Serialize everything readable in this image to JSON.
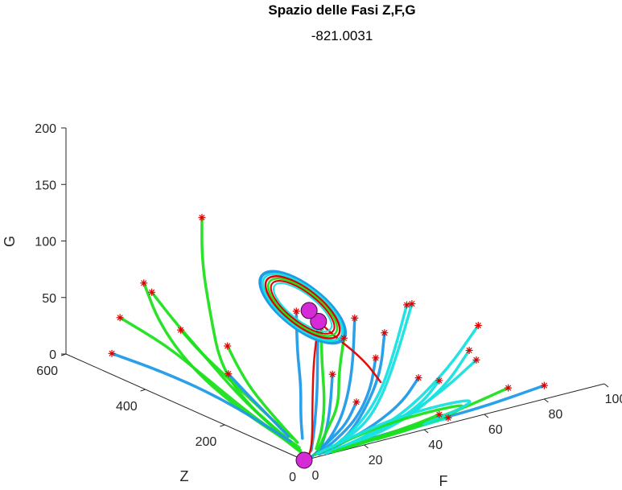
{
  "chart_data": {
    "type": "line",
    "projection": "3d",
    "title": "Spazio delle Fasi Z,F,G",
    "subtitle": "-821.0031",
    "xlabel": "F",
    "ylabel": "Z",
    "zlabel": "G",
    "xlim": [
      0,
      100
    ],
    "ylim": [
      0,
      600
    ],
    "zlim": [
      0,
      200
    ],
    "x_ticks": [
      "0",
      "20",
      "40",
      "60",
      "80",
      "100"
    ],
    "y_ticks": [
      "0",
      "200",
      "400",
      "600"
    ],
    "z_ticks": [
      "0",
      "50",
      "100",
      "150",
      "200"
    ],
    "grid": false,
    "colors": {
      "green": "#1ee01e",
      "blue": "#1e9be6",
      "cyan": "#18e0e0",
      "red": "#e00000",
      "start_marker": "#e00000",
      "equilibrium": "#d62ad6"
    },
    "equilibria": [
      {
        "F": 0,
        "Z": 0,
        "G": 0
      },
      {
        "F": 18,
        "Z": 100,
        "G": 95
      },
      {
        "F": 40,
        "Z": 290,
        "G": 60
      }
    ],
    "start_points": [
      {
        "F": 40,
        "Z": 560,
        "G": 100
      },
      {
        "F": 18,
        "Z": 540,
        "G": 60
      },
      {
        "F": 18,
        "Z": 520,
        "G": 55
      },
      {
        "F": 18,
        "Z": 600,
        "G": 20
      },
      {
        "F": 25,
        "Z": 500,
        "G": 20
      },
      {
        "F": 30,
        "Z": 420,
        "G": 15
      },
      {
        "F": 10,
        "Z": 560,
        "G": 0
      },
      {
        "F": 25,
        "Z": 380,
        "G": 0
      },
      {
        "F": 45,
        "Z": 360,
        "G": 45
      },
      {
        "F": 20,
        "Z": 80,
        "G": 50
      },
      {
        "F": 28,
        "Z": 80,
        "G": 20
      },
      {
        "F": 38,
        "Z": 160,
        "G": 75
      },
      {
        "F": 40,
        "Z": 100,
        "G": 70
      },
      {
        "F": 45,
        "Z": 160,
        "G": 35
      },
      {
        "F": 50,
        "Z": 90,
        "G": 25
      },
      {
        "F": 45,
        "Z": 0,
        "G": 40
      },
      {
        "F": 55,
        "Z": 0,
        "G": 60
      },
      {
        "F": 58,
        "Z": 0,
        "G": 80
      },
      {
        "F": 60,
        "Z": 20,
        "G": 45
      },
      {
        "F": 58,
        "Z": 180,
        "G": 70
      },
      {
        "F": 65,
        "Z": 220,
        "G": 60
      },
      {
        "F": 80,
        "Z": 0,
        "G": 12
      },
      {
        "F": 48,
        "Z": 0,
        "G": 5
      },
      {
        "F": 45,
        "Z": 0,
        "G": 10
      },
      {
        "F": 68,
        "Z": 0,
        "G": 18
      },
      {
        "F": 40,
        "Z": 260,
        "G": 50
      },
      {
        "F": 45,
        "Z": 240,
        "G": 40
      }
    ],
    "series": [
      {
        "color": "green",
        "points": [
          [
            40,
            560,
            100
          ],
          [
            40,
            560,
            60
          ],
          [
            35,
            500,
            25
          ],
          [
            25,
            400,
            5
          ],
          [
            15,
            260,
            0
          ],
          [
            8,
            120,
            0
          ],
          [
            5,
            60,
            0
          ]
        ]
      },
      {
        "color": "green",
        "points": [
          [
            18,
            540,
            60
          ],
          [
            18,
            500,
            30
          ],
          [
            15,
            400,
            10
          ],
          [
            10,
            250,
            2
          ],
          [
            6,
            100,
            0
          ],
          [
            4,
            40,
            0
          ]
        ]
      },
      {
        "color": "green",
        "points": [
          [
            18,
            520,
            55
          ],
          [
            20,
            480,
            35
          ],
          [
            20,
            400,
            15
          ],
          [
            15,
            280,
            4
          ],
          [
            8,
            130,
            0
          ],
          [
            5,
            50,
            0
          ]
        ]
      },
      {
        "color": "green",
        "points": [
          [
            18,
            600,
            20
          ],
          [
            20,
            500,
            10
          ],
          [
            18,
            400,
            3
          ],
          [
            12,
            250,
            0
          ],
          [
            6,
            100,
            0
          ],
          [
            3,
            30,
            0
          ]
        ]
      },
      {
        "color": "green",
        "points": [
          [
            25,
            500,
            20
          ],
          [
            25,
            450,
            8
          ],
          [
            22,
            360,
            2
          ],
          [
            15,
            220,
            0
          ],
          [
            8,
            90,
            0
          ]
        ]
      },
      {
        "color": "green",
        "points": [
          [
            30,
            420,
            15
          ],
          [
            28,
            380,
            5
          ],
          [
            22,
            300,
            1
          ],
          [
            14,
            180,
            0
          ],
          [
            7,
            70,
            0
          ]
        ]
      },
      {
        "color": "blue",
        "points": [
          [
            10,
            560,
            0
          ],
          [
            12,
            450,
            0
          ],
          [
            12,
            320,
            0
          ],
          [
            9,
            180,
            0
          ],
          [
            6,
            80,
            0
          ]
        ]
      },
      {
        "color": "blue",
        "points": [
          [
            25,
            380,
            0
          ],
          [
            20,
            300,
            0
          ],
          [
            14,
            200,
            0
          ],
          [
            8,
            100,
            0
          ]
        ]
      },
      {
        "color": "blue",
        "points": [
          [
            45,
            360,
            45
          ],
          [
            40,
            320,
            20
          ],
          [
            32,
            250,
            5
          ],
          [
            20,
            160,
            0
          ],
          [
            10,
            80,
            0
          ]
        ]
      },
      {
        "color": "blue",
        "points": [
          [
            20,
            80,
            50
          ],
          [
            18,
            70,
            25
          ],
          [
            14,
            50,
            8
          ],
          [
            8,
            20,
            1
          ],
          [
            3,
            5,
            0
          ]
        ]
      },
      {
        "color": "blue",
        "points": [
          [
            28,
            80,
            20
          ],
          [
            22,
            60,
            8
          ],
          [
            14,
            40,
            2
          ],
          [
            6,
            15,
            0
          ]
        ]
      },
      {
        "color": "blue",
        "points": [
          [
            38,
            160,
            75
          ],
          [
            32,
            120,
            40
          ],
          [
            24,
            80,
            15
          ],
          [
            14,
            40,
            3
          ],
          [
            6,
            15,
            0
          ]
        ]
      },
      {
        "color": "blue",
        "points": [
          [
            40,
            100,
            70
          ],
          [
            36,
            80,
            40
          ],
          [
            28,
            60,
            15
          ],
          [
            18,
            30,
            3
          ],
          [
            8,
            10,
            0
          ]
        ]
      },
      {
        "color": "blue",
        "points": [
          [
            45,
            160,
            35
          ],
          [
            38,
            120,
            18
          ],
          [
            28,
            80,
            5
          ],
          [
            16,
            40,
            1
          ],
          [
            6,
            10,
            0
          ]
        ]
      },
      {
        "color": "blue",
        "points": [
          [
            50,
            90,
            25
          ],
          [
            42,
            70,
            12
          ],
          [
            30,
            50,
            3
          ],
          [
            16,
            25,
            0
          ],
          [
            6,
            8,
            0
          ]
        ]
      },
      {
        "color": "blue",
        "points": [
          [
            80,
            0,
            12
          ],
          [
            60,
            10,
            4
          ],
          [
            40,
            20,
            1
          ],
          [
            20,
            15,
            0
          ],
          [
            8,
            5,
            0
          ]
        ]
      },
      {
        "color": "cyan",
        "points": [
          [
            45,
            0,
            40
          ],
          [
            40,
            10,
            20
          ],
          [
            30,
            20,
            6
          ],
          [
            18,
            15,
            1
          ],
          [
            8,
            5,
            0
          ]
        ]
      },
      {
        "color": "cyan",
        "points": [
          [
            55,
            0,
            60
          ],
          [
            48,
            10,
            30
          ],
          [
            36,
            20,
            8
          ],
          [
            22,
            15,
            1
          ],
          [
            10,
            5,
            0
          ]
        ]
      },
      {
        "color": "cyan",
        "points": [
          [
            58,
            0,
            80
          ],
          [
            50,
            15,
            45
          ],
          [
            38,
            25,
            15
          ],
          [
            24,
            20,
            3
          ],
          [
            10,
            5,
            0
          ]
        ]
      },
      {
        "color": "cyan",
        "points": [
          [
            60,
            20,
            45
          ],
          [
            50,
            25,
            25
          ],
          [
            38,
            30,
            8
          ],
          [
            22,
            20,
            1
          ],
          [
            10,
            5,
            0
          ]
        ]
      },
      {
        "color": "cyan",
        "points": [
          [
            58,
            180,
            70
          ],
          [
            50,
            150,
            40
          ],
          [
            40,
            110,
            15
          ],
          [
            26,
            60,
            3
          ],
          [
            12,
            20,
            0
          ]
        ]
      },
      {
        "color": "cyan",
        "points": [
          [
            65,
            220,
            60
          ],
          [
            55,
            180,
            30
          ],
          [
            42,
            120,
            10
          ],
          [
            28,
            60,
            2
          ],
          [
            12,
            20,
            0
          ]
        ]
      },
      {
        "color": "cyan",
        "points": [
          [
            48,
            0,
            5
          ],
          [
            38,
            8,
            2
          ],
          [
            26,
            10,
            0
          ],
          [
            14,
            6,
            0
          ]
        ]
      },
      {
        "color": "green",
        "points": [
          [
            45,
            0,
            10
          ],
          [
            36,
            8,
            4
          ],
          [
            24,
            10,
            1
          ],
          [
            12,
            5,
            0
          ]
        ]
      },
      {
        "color": "green",
        "points": [
          [
            68,
            0,
            18
          ],
          [
            55,
            10,
            8
          ],
          [
            40,
            15,
            2
          ],
          [
            24,
            10,
            0
          ],
          [
            10,
            4,
            0
          ]
        ]
      },
      {
        "color": "green",
        "points": [
          [
            40,
            260,
            50
          ],
          [
            35,
            220,
            28
          ],
          [
            28,
            160,
            10
          ],
          [
            18,
            90,
            2
          ],
          [
            8,
            30,
            0
          ]
        ]
      },
      {
        "color": "green",
        "points": [
          [
            45,
            240,
            40
          ],
          [
            38,
            200,
            20
          ],
          [
            30,
            140,
            6
          ],
          [
            18,
            80,
            1
          ],
          [
            8,
            25,
            0
          ]
        ]
      },
      {
        "color": "blue",
        "points": [
          [
            18,
            100,
            95
          ],
          [
            17,
            95,
            70
          ],
          [
            15,
            80,
            40
          ],
          [
            10,
            50,
            12
          ],
          [
            5,
            20,
            2
          ]
        ]
      },
      {
        "color": "red",
        "points": [
          [
            18,
            100,
            95
          ],
          [
            17,
            98,
            80
          ],
          [
            15,
            90,
            60
          ],
          [
            12,
            70,
            30
          ],
          [
            8,
            40,
            8
          ],
          [
            4,
            15,
            1
          ],
          [
            1,
            3,
            0
          ]
        ]
      },
      {
        "color": "red",
        "points": [
          [
            18,
            100,
            95
          ],
          [
            28,
            200,
            80
          ],
          [
            36,
            270,
            66
          ],
          [
            40,
            290,
            60
          ]
        ]
      },
      {
        "color": "red",
        "points": [
          [
            40,
            290,
            60
          ],
          [
            45,
            280,
            40
          ],
          [
            50,
            230,
            20
          ],
          [
            48,
            170,
            10
          ]
        ]
      },
      {
        "color": "green",
        "points": [
          [
            5,
            10,
            0
          ],
          [
            15,
            20,
            2
          ],
          [
            30,
            30,
            6
          ],
          [
            45,
            20,
            10
          ],
          [
            55,
            5,
            12
          ],
          [
            50,
            0,
            8
          ],
          [
            38,
            0,
            4
          ],
          [
            25,
            5,
            1
          ]
        ]
      },
      {
        "color": "cyan",
        "points": [
          [
            6,
            12,
            0
          ],
          [
            18,
            25,
            3
          ],
          [
            34,
            35,
            8
          ],
          [
            48,
            25,
            12
          ],
          [
            58,
            8,
            14
          ],
          [
            52,
            0,
            10
          ],
          [
            40,
            0,
            5
          ]
        ]
      },
      {
        "color": "green",
        "points": [
          [
            18,
            100,
            95
          ],
          [
            24,
            140,
            88
          ],
          [
            30,
            190,
            78
          ],
          [
            36,
            250,
            68
          ],
          [
            40,
            290,
            60
          ]
        ]
      }
    ],
    "limit_cycle": {
      "center": {
        "F": 40,
        "Z": 290,
        "G": 60
      },
      "note": "closed orbit around equilibrium"
    }
  }
}
